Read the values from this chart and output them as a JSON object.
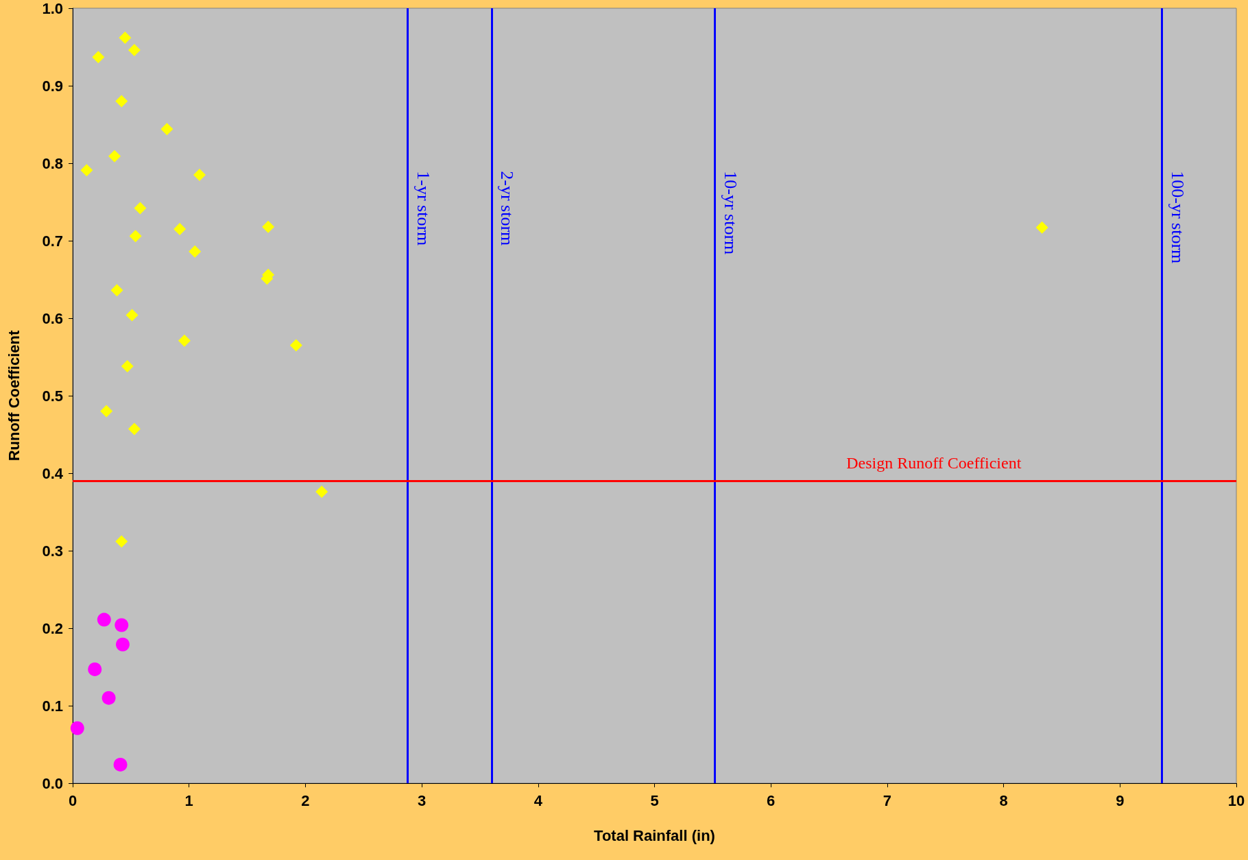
{
  "chart_data": {
    "type": "scatter",
    "xlabel": "Total Rainfall (in)",
    "ylabel": "Runoff Coefficient",
    "xlim": [
      0,
      10
    ],
    "xticks": [
      0,
      1,
      2,
      3,
      4,
      5,
      6,
      7,
      8,
      9,
      10
    ],
    "ylim": [
      0,
      1
    ],
    "yticks": [
      {
        "value": 0,
        "label": "0.0"
      },
      {
        "value": 0.1,
        "label": "0.1"
      },
      {
        "value": 0.2,
        "label": "0.2"
      },
      {
        "value": 0.3,
        "label": "0.3"
      },
      {
        "value": 0.4,
        "label": "0.4"
      },
      {
        "value": 0.5,
        "label": "0.5"
      },
      {
        "value": 0.6,
        "label": "0.6"
      },
      {
        "value": 0.7,
        "label": "0.7"
      },
      {
        "value": 0.8,
        "label": "0.8"
      },
      {
        "value": 0.9,
        "label": "0.9"
      },
      {
        "value": 1,
        "label": "1.0"
      }
    ],
    "series": [
      {
        "marker": "diamond",
        "color": "#ffff00",
        "x": [
          0.22,
          0.45,
          0.53,
          0.42,
          0.81,
          0.36,
          0.12,
          1.09,
          0.58,
          0.54,
          0.92,
          1.05,
          1.68,
          1.68,
          1.67,
          0.38,
          0.51,
          0.96,
          1.92,
          0.47,
          0.29,
          0.53,
          2.14,
          0.42,
          8.33
        ],
        "values": [
          0.937,
          0.962,
          0.946,
          0.88,
          0.844,
          0.809,
          0.791,
          0.785,
          0.742,
          0.706,
          0.715,
          0.686,
          0.718,
          0.656,
          0.651,
          0.636,
          0.604,
          0.571,
          0.565,
          0.538,
          0.48,
          0.457,
          0.376,
          0.312,
          0.717
        ]
      },
      {
        "marker": "circle",
        "color": "#ff00ff",
        "x": [
          0.27,
          0.42,
          0.43,
          0.19,
          0.31,
          0.04,
          0.41
        ],
        "values": [
          0.211,
          0.204,
          0.179,
          0.147,
          0.11,
          0.071,
          0.024
        ]
      }
    ],
    "ref_lines": [
      {
        "axis": "x",
        "value": 2.88,
        "label": "1-yr storm",
        "color": "#0000ff"
      },
      {
        "axis": "x",
        "value": 3.6,
        "label": "2-yr storm",
        "color": "#0000ff"
      },
      {
        "axis": "x",
        "value": 5.52,
        "label": "10-yr storm",
        "color": "#0000ff"
      },
      {
        "axis": "x",
        "value": 9.36,
        "label": "100-yr storm",
        "color": "#0000ff"
      },
      {
        "axis": "y",
        "value": 0.394,
        "label": "Design Runoff Coefficient",
        "color": "#ff0000"
      }
    ]
  }
}
